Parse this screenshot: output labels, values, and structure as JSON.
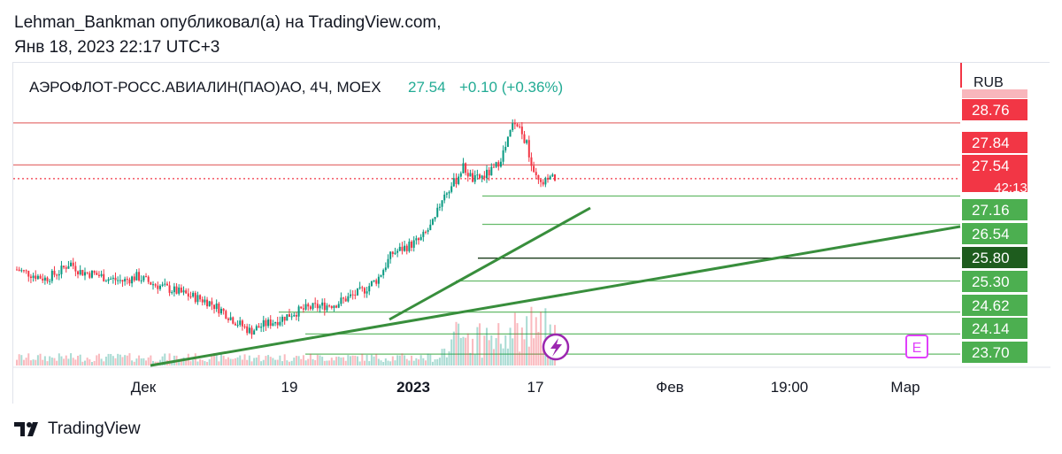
{
  "header": {
    "line1": "Lehman_Bankman опубликовал(а) на TradingView.com,",
    "line2": "Янв 18, 2023 22:17 UTC+3"
  },
  "footer": {
    "brand": "TradingView"
  },
  "chart_data": {
    "type": "candlestick",
    "title": "АЭРОФЛОТ-РОСС.АВИАЛИН(ПАО)АО, 4Ч, MOEX",
    "price": "27.54",
    "change": "+0.10 (+0.36%)",
    "currency": "RUB",
    "countdown": "42:13",
    "x_ticks": [
      "Дек",
      "19",
      "2023",
      "17",
      "Фев",
      "19:00",
      "Мар"
    ],
    "ylim": [
      23.45,
      29.3
    ],
    "price_tags": [
      {
        "label": "28.76",
        "value": 28.76,
        "color": "#f23645"
      },
      {
        "label": "27.84",
        "value": 27.84,
        "color": "#f23645"
      },
      {
        "label": "27.54",
        "value": 27.54,
        "color": "#f23645"
      },
      {
        "label": "27.16",
        "value": 27.16,
        "color": "#4caf50"
      },
      {
        "label": "26.54",
        "value": 26.54,
        "color": "#4caf50"
      },
      {
        "label": "25.80",
        "value": 25.8,
        "color": "#1e5c1e"
      },
      {
        "label": "25.30",
        "value": 25.3,
        "color": "#4caf50"
      },
      {
        "label": "24.62",
        "value": 24.62,
        "color": "#4caf50"
      },
      {
        "label": "24.14",
        "value": 24.14,
        "color": "#4caf50"
      },
      {
        "label": "23.70",
        "value": 23.7,
        "color": "#4caf50"
      }
    ],
    "price_path": [
      [
        0,
        25.55
      ],
      [
        0.02,
        25.45
      ],
      [
        0.04,
        25.35
      ],
      [
        0.06,
        25.5
      ],
      [
        0.075,
        25.7
      ],
      [
        0.09,
        25.5
      ],
      [
        0.11,
        25.45
      ],
      [
        0.13,
        25.35
      ],
      [
        0.15,
        25.3
      ],
      [
        0.17,
        25.4
      ],
      [
        0.19,
        25.25
      ],
      [
        0.21,
        25.15
      ],
      [
        0.23,
        25.05
      ],
      [
        0.25,
        24.95
      ],
      [
        0.27,
        24.85
      ],
      [
        0.29,
        24.65
      ],
      [
        0.31,
        24.4
      ],
      [
        0.33,
        24.2
      ],
      [
        0.35,
        24.35
      ],
      [
        0.37,
        24.45
      ],
      [
        0.39,
        24.6
      ],
      [
        0.41,
        24.7
      ],
      [
        0.43,
        24.75
      ],
      [
        0.45,
        24.8
      ],
      [
        0.47,
        24.95
      ],
      [
        0.49,
        25.1
      ],
      [
        0.51,
        25.35
      ],
      [
        0.53,
        25.9
      ],
      [
        0.55,
        26.05
      ],
      [
        0.57,
        26.2
      ],
      [
        0.58,
        26.4
      ],
      [
        0.59,
        26.6
      ],
      [
        0.6,
        27.1
      ],
      [
        0.62,
        27.5
      ],
      [
        0.63,
        27.8
      ],
      [
        0.645,
        27.5
      ],
      [
        0.66,
        27.6
      ],
      [
        0.675,
        27.75
      ],
      [
        0.69,
        28.2
      ],
      [
        0.7,
        28.7
      ],
      [
        0.71,
        28.6
      ],
      [
        0.72,
        28.3
      ],
      [
        0.73,
        27.6
      ],
      [
        0.74,
        27.4
      ],
      [
        0.75,
        27.5
      ],
      [
        0.76,
        27.54
      ]
    ]
  }
}
